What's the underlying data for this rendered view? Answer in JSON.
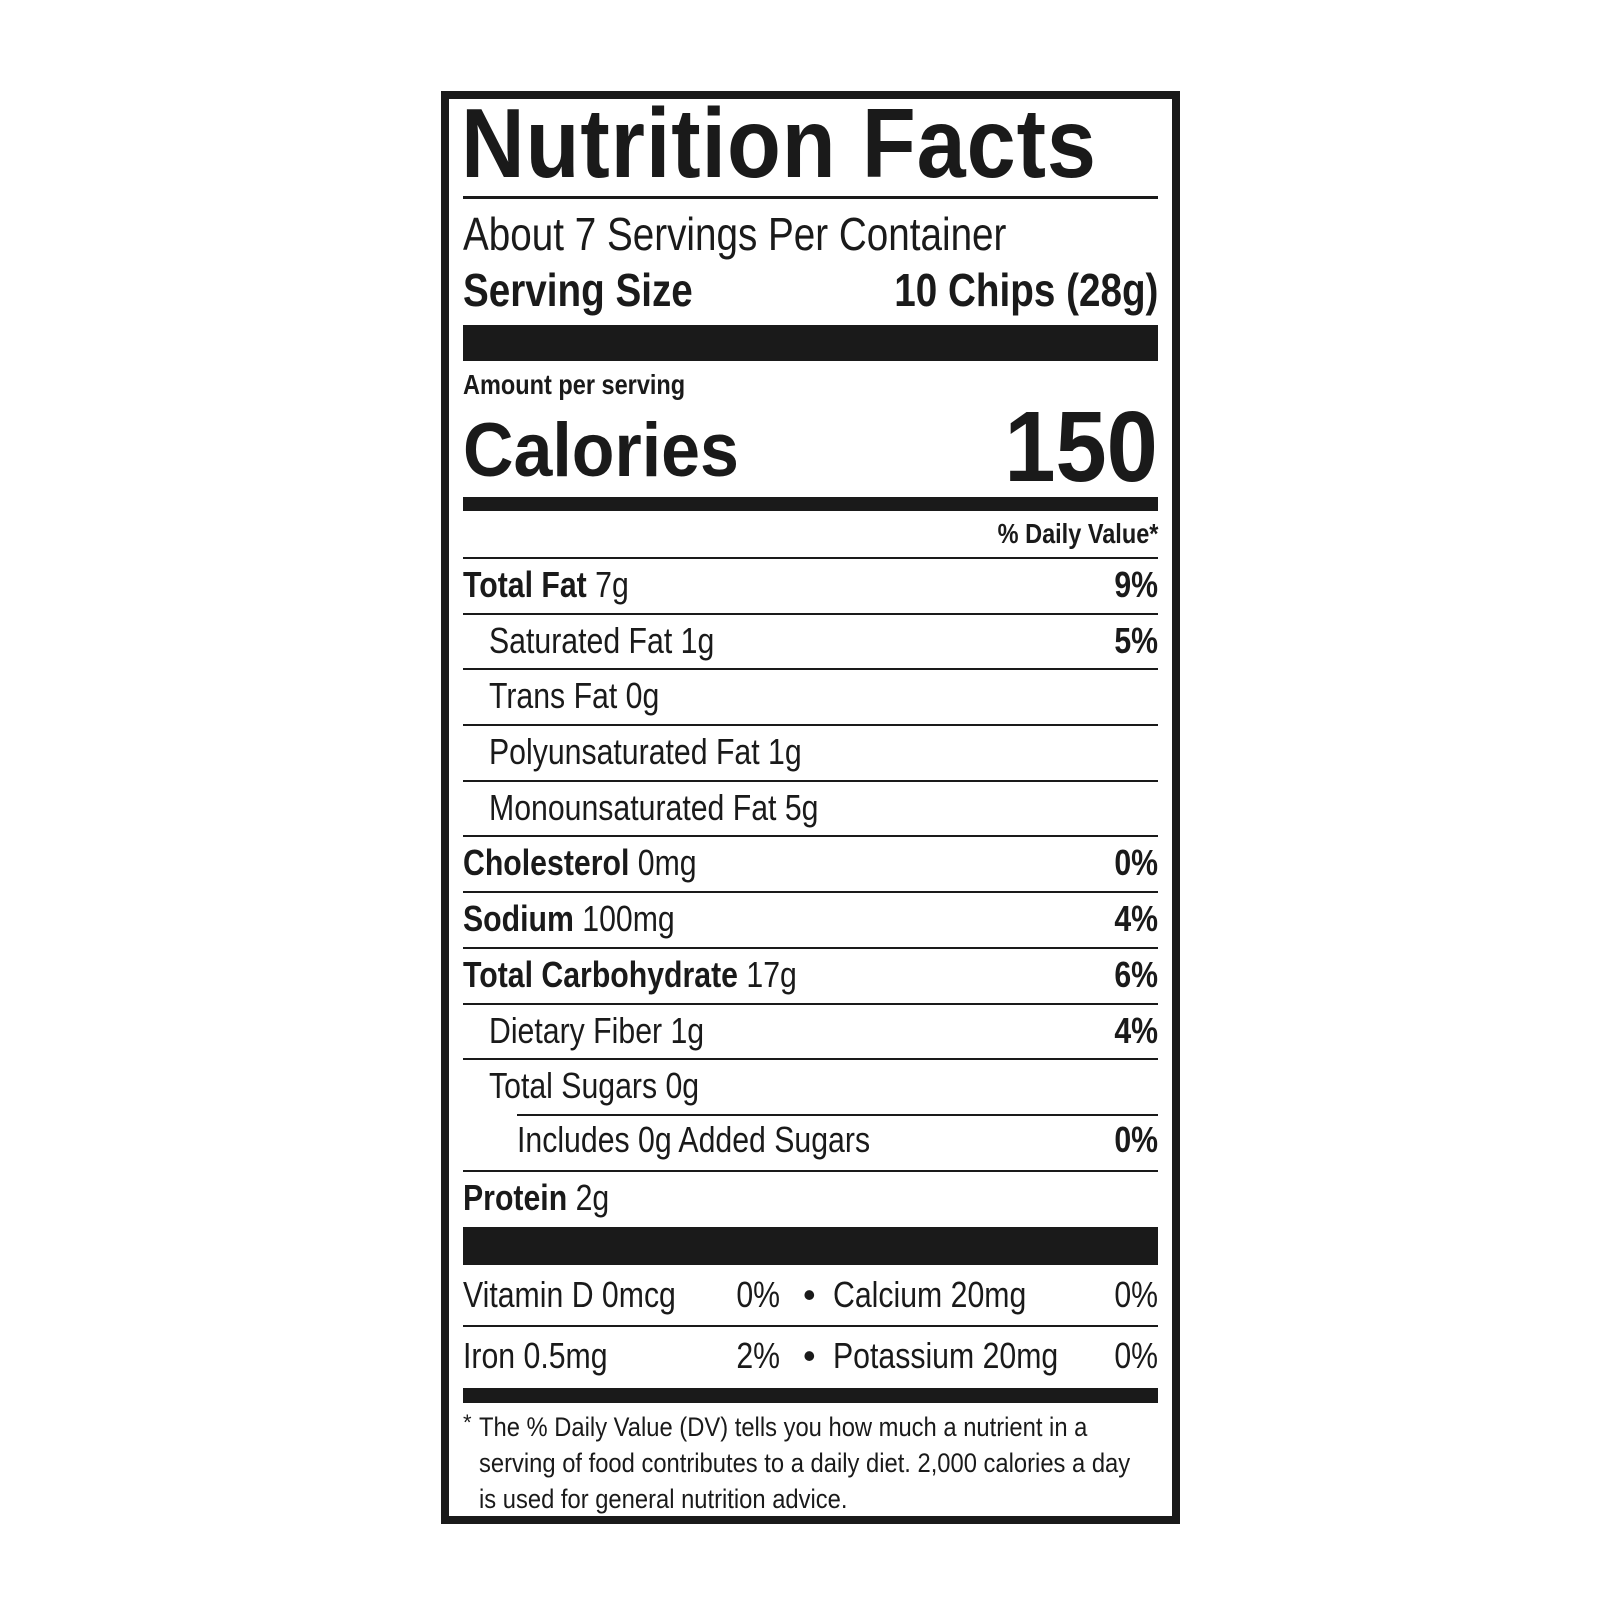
{
  "title": "Nutrition Facts",
  "servings_per_container": "About 7 Servings Per Container",
  "serving_size": {
    "label": "Serving Size",
    "value": "10 Chips (28g)"
  },
  "amount_per_serving": "Amount per serving",
  "calories": {
    "label": "Calories",
    "value": "150"
  },
  "daily_value_header": "% Daily Value*",
  "nutrients": [
    {
      "name": "Total Fat",
      "amount": "7g",
      "dv": "9%"
    },
    {
      "name": "Saturated Fat 1g",
      "dv": "5%"
    },
    {
      "name": "Trans Fat 0g"
    },
    {
      "name": "Polyunsaturated Fat 1g"
    },
    {
      "name": "Monounsaturated Fat 5g"
    },
    {
      "name": "Cholesterol",
      "amount": "0mg",
      "dv": "0%"
    },
    {
      "name": "Sodium",
      "amount": "100mg",
      "dv": "4%"
    },
    {
      "name": "Total Carbohydrate",
      "amount": "17g",
      "dv": "6%"
    },
    {
      "name": "Dietary Fiber 1g",
      "dv": "4%"
    },
    {
      "name": "Total Sugars 0g"
    },
    {
      "name": "Includes 0g Added Sugars",
      "dv": "0%"
    },
    {
      "name": "Protein",
      "amount": "2g"
    }
  ],
  "vitamins": [
    {
      "name": "Vitamin D 0mcg",
      "dv": "0%"
    },
    {
      "name": "Calcium 20mg",
      "dv": "0%"
    },
    {
      "name": "Iron 0.5mg",
      "dv": "2%"
    },
    {
      "name": "Potassium 20mg",
      "dv": "0%"
    }
  ],
  "bullet": "•",
  "footnote": {
    "star": "*",
    "text": "The % Daily Value (DV) tells you how much a nutrient in a serving of food contributes to a daily diet. 2,000 calories a day is used for general nutrition advice."
  }
}
